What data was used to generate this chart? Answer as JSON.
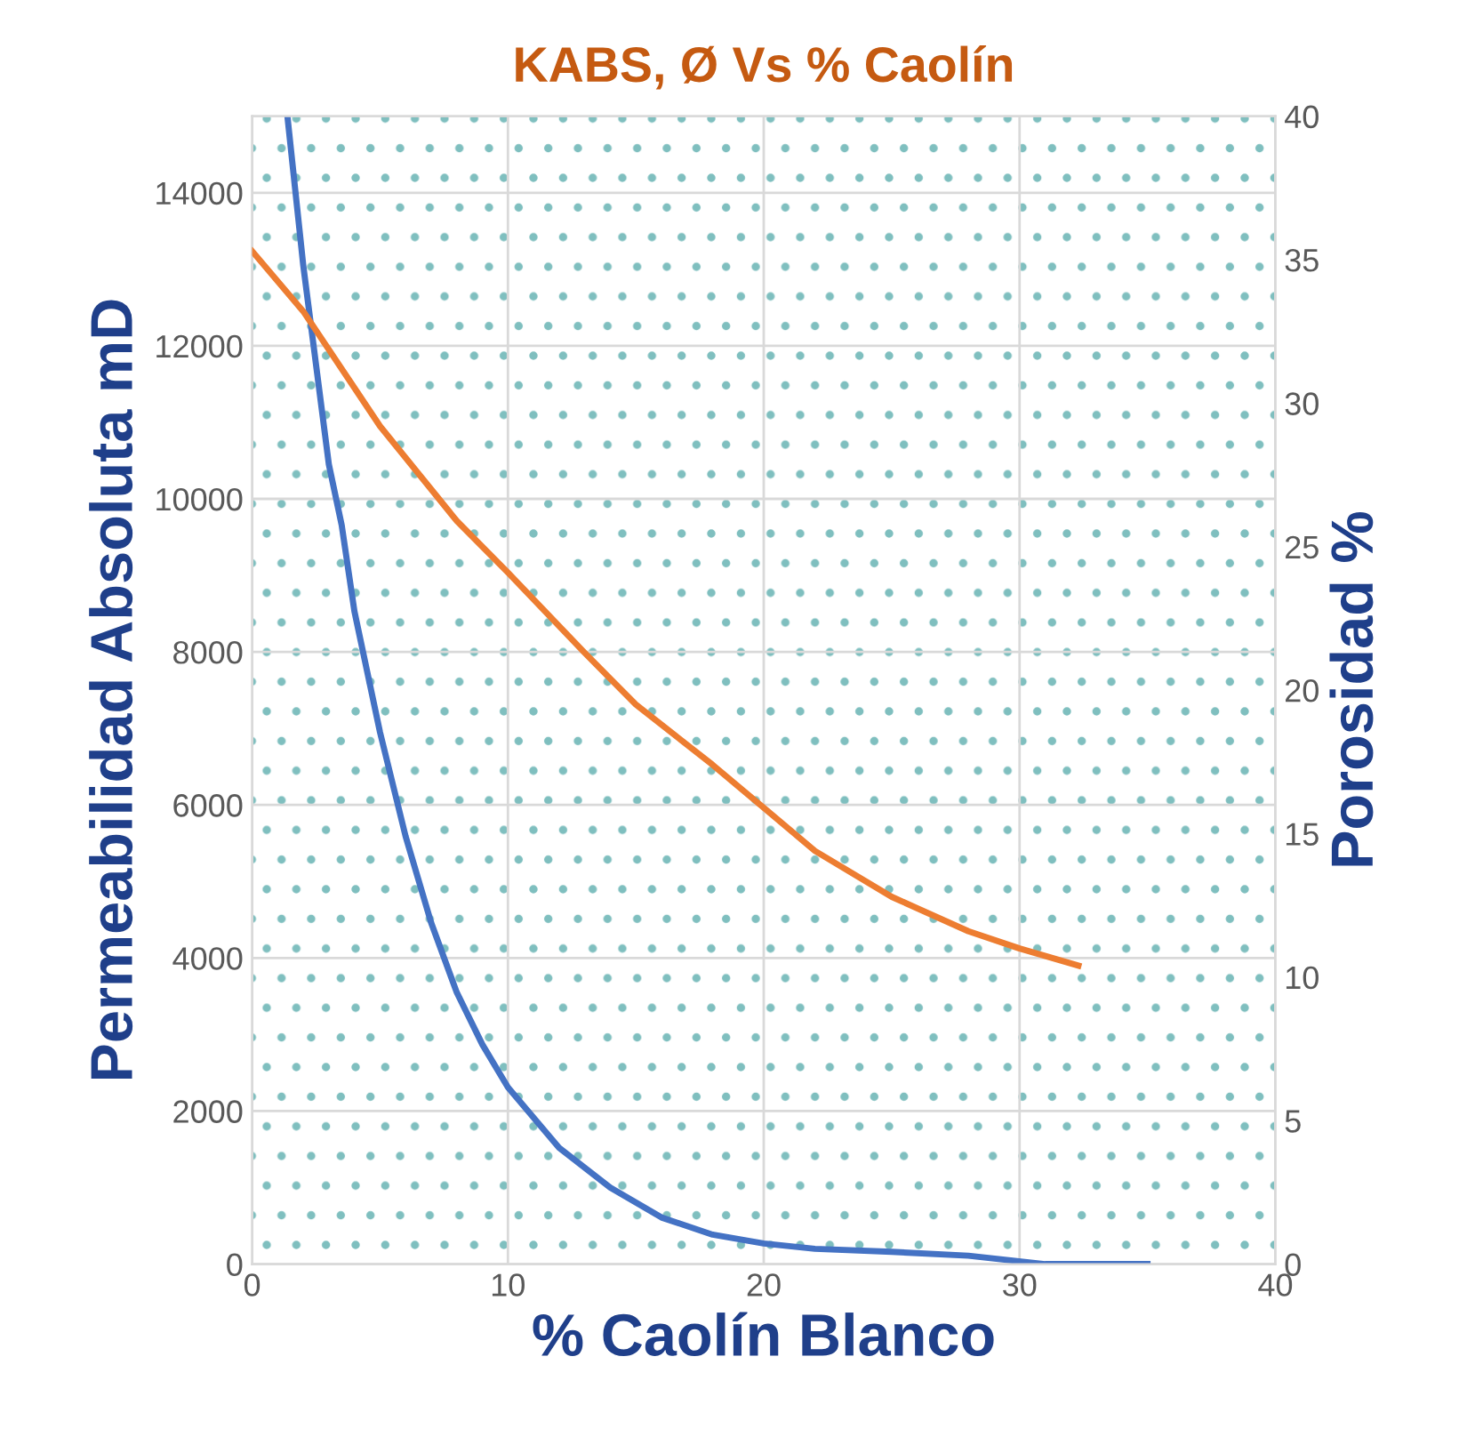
{
  "chart_data": {
    "type": "line",
    "title": "KABS, Ø Vs % Caolín",
    "xlabel": "% Caolín Blanco",
    "ylabel": "Permeabilidad Absoluta mD",
    "y2label": "Porosidad %",
    "xlim": [
      0,
      40
    ],
    "xticks": [
      0,
      10,
      20,
      30,
      40
    ],
    "ylim": [
      0,
      15000
    ],
    "yticks": [
      0,
      2000,
      4000,
      6000,
      8000,
      10000,
      12000,
      14000
    ],
    "y2lim": [
      0,
      40
    ],
    "y2ticks": [
      0,
      5,
      10,
      15,
      20,
      25,
      30,
      35,
      40
    ],
    "grid": true,
    "marker": "none",
    "line_style": "solid",
    "series": [
      {
        "color": "#4472c4",
        "x": [
          1.38,
          2,
          3,
          3.5,
          4,
          5,
          6,
          7,
          8,
          9,
          10,
          12,
          14,
          16,
          18,
          20,
          22,
          25,
          28,
          31,
          35
        ],
        "values": [
          15000,
          13050,
          10450,
          9660,
          8530,
          6950,
          5590,
          4460,
          3550,
          2870,
          2310,
          1520,
          1000,
          610,
          385,
          270,
          200,
          160,
          110,
          0,
          0
        ]
      },
      {
        "color": "#ed7d31",
        "axis": "y2",
        "x": [
          0,
          2,
          5,
          8,
          10,
          13,
          15,
          18,
          20,
          22,
          25,
          28,
          30,
          32.3
        ],
        "values": [
          35.3,
          33.2,
          29.2,
          25.9,
          24.1,
          21.3,
          19.5,
          17.4,
          15.9,
          14.4,
          12.8,
          11.6,
          11.0,
          10.4
        ]
      }
    ]
  }
}
